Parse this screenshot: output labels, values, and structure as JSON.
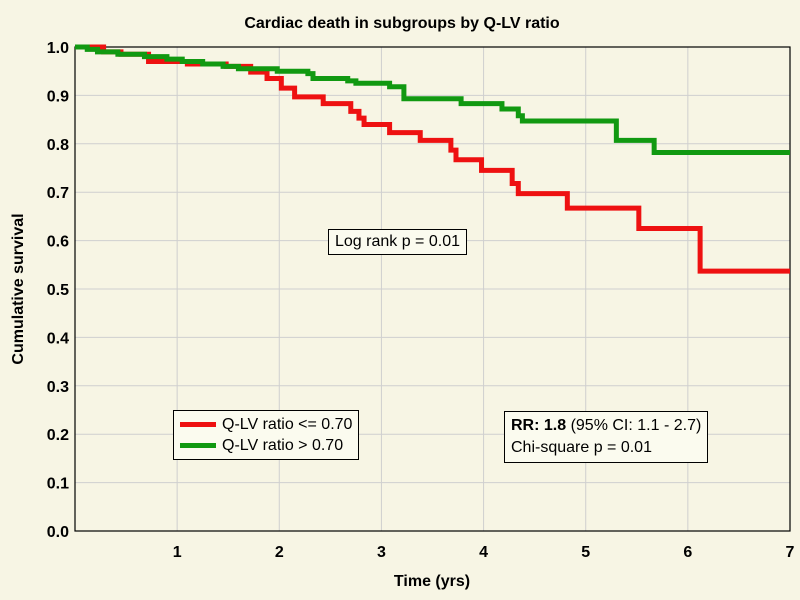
{
  "chart_data": {
    "type": "line",
    "title": "Cardiac death in subgroups by Q-LV ratio",
    "xlabel": "Time (yrs)",
    "ylabel": "Cumulative survival",
    "xlim": [
      0,
      7
    ],
    "ylim": [
      0,
      1.0
    ],
    "x_ticks": [
      1,
      2,
      3,
      4,
      5,
      6,
      7
    ],
    "y_ticks": [
      0.0,
      0.1,
      0.2,
      0.3,
      0.4,
      0.5,
      0.6,
      0.7,
      0.8,
      0.9,
      1.0
    ],
    "y_tick_labels": [
      "0.0",
      "0.1",
      "0.2",
      "0.3",
      "0.4",
      "0.5",
      "0.6",
      "0.7",
      "0.8",
      "0.9",
      "1.0"
    ],
    "x_tick_labels": [
      "1",
      "2",
      "3",
      "4",
      "5",
      "6",
      "7"
    ],
    "grid": true,
    "legend_position": "bottom-left",
    "step": true,
    "series": [
      {
        "name": "Q-LV ratio <= 0.70",
        "color": "#ee1111",
        "x": [
          0,
          0.28,
          0.45,
          0.72,
          1.1,
          1.48,
          1.72,
          1.88,
          2.02,
          2.15,
          2.43,
          2.7,
          2.78,
          2.83,
          3.08,
          3.38,
          3.68,
          3.73,
          3.98,
          4.28,
          4.34,
          4.82,
          5.52,
          6.12,
          7.0
        ],
        "y": [
          1.0,
          0.99,
          0.985,
          0.97,
          0.965,
          0.96,
          0.948,
          0.935,
          0.915,
          0.897,
          0.883,
          0.867,
          0.853,
          0.84,
          0.823,
          0.807,
          0.787,
          0.767,
          0.745,
          0.718,
          0.697,
          0.667,
          0.625,
          0.537,
          0.537
        ]
      },
      {
        "name": "Q-LV ratio > 0.70",
        "color": "#119911",
        "x": [
          0,
          0.12,
          0.22,
          0.42,
          0.68,
          0.9,
          1.05,
          1.25,
          1.45,
          1.6,
          1.98,
          2.28,
          2.33,
          2.67,
          2.75,
          3.08,
          3.22,
          3.78,
          4.18,
          4.34,
          4.38,
          5.3,
          5.67,
          7.0
        ],
        "y": [
          1.0,
          0.995,
          0.99,
          0.985,
          0.98,
          0.975,
          0.97,
          0.965,
          0.96,
          0.955,
          0.95,
          0.945,
          0.935,
          0.93,
          0.925,
          0.918,
          0.893,
          0.883,
          0.872,
          0.858,
          0.847,
          0.807,
          0.782,
          0.782
        ]
      }
    ],
    "annotations": {
      "logrank": "Log rank p = 0.01",
      "rr_label": "RR: 1.8",
      "rr_ci": " (95% CI: 1.1 - 2.7)",
      "chisq": "Chi-square p = 0.01"
    }
  }
}
